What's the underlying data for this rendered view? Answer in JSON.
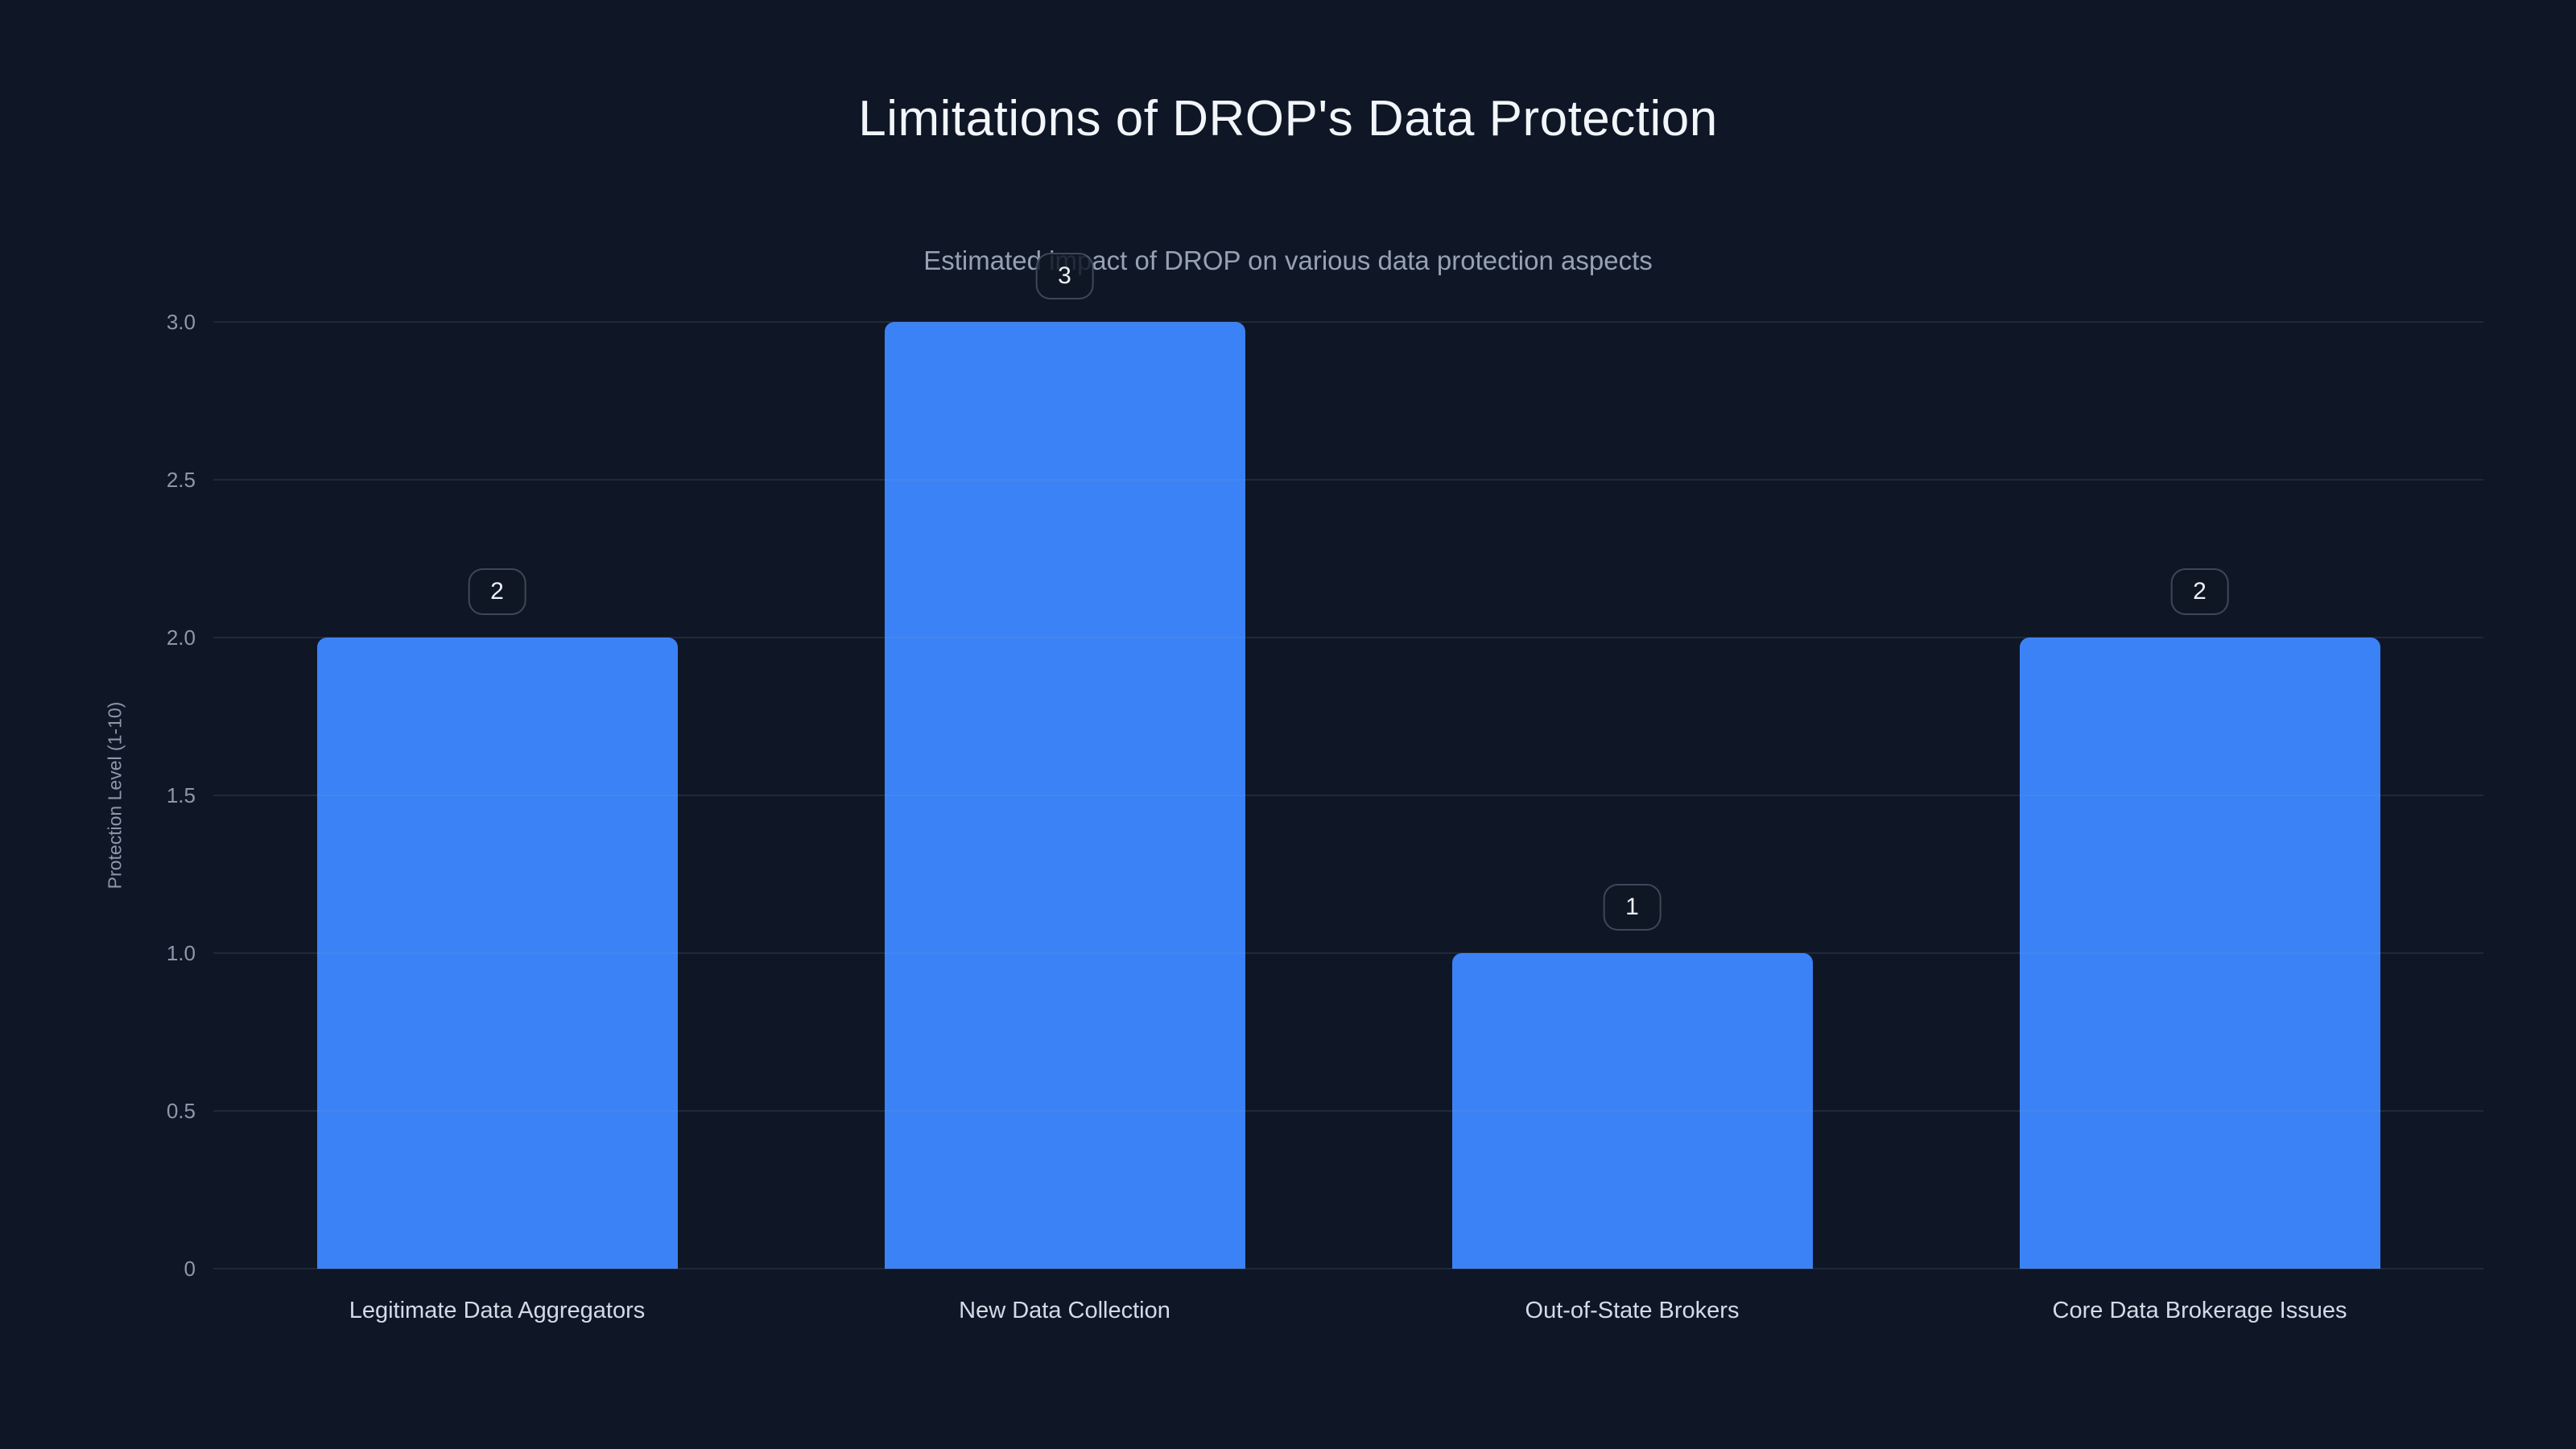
{
  "chart": {
    "title": "Limitations of DROP's Data Protection",
    "subtitle": "Estimated impact of DROP on various data protection aspects"
  },
  "chart_data": {
    "type": "bar",
    "title": "Limitations of DROP's Data Protection",
    "subtitle": "Estimated impact of DROP on various data protection aspects",
    "categories": [
      "Legitimate Data Aggregators",
      "New Data Collection",
      "Out-of-State Brokers",
      "Core Data Brokerage Issues"
    ],
    "values": [
      2,
      3,
      1,
      2
    ],
    "data_labels": [
      "2",
      "3",
      "1",
      "2"
    ],
    "xlabel": "",
    "ylabel": "Protection Level (1-10)",
    "ylim": [
      0,
      3
    ],
    "yticks": [
      0,
      0.5,
      1,
      1.5,
      2,
      2.5,
      3
    ],
    "ytick_labels": [
      "0",
      "0.5",
      "1.0",
      "1.5",
      "2.0",
      "2.5",
      "3.0"
    ],
    "grid": true,
    "legend_position": "none",
    "bar_color": "#3b82f6",
    "background_color": "#0f1726",
    "value_badge_border_color": "rgba(148,163,184,0.35)",
    "gridline_color": "rgba(148,163,184,0.13)"
  }
}
